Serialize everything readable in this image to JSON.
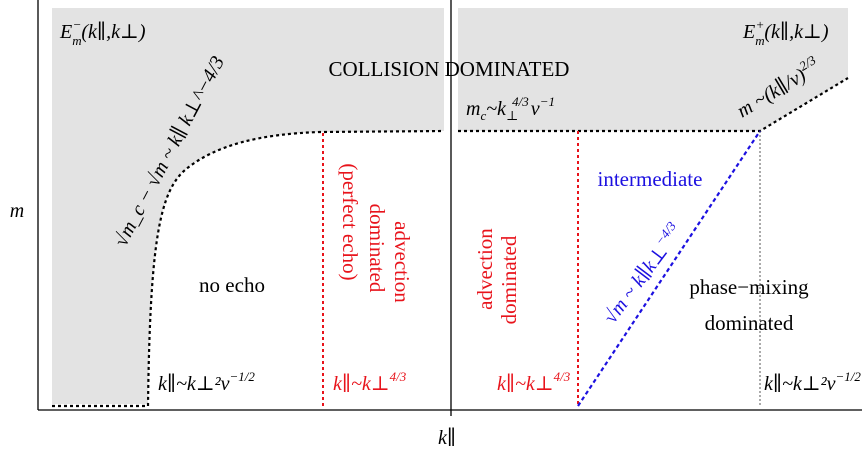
{
  "axes": {
    "x_label": "k∥",
    "y_label": "m"
  },
  "panels": {
    "left": {
      "energy_label_main": "E",
      "energy_label_sub": "m",
      "energy_label_sup": "−",
      "energy_label_args": "(k∥,k⊥)"
    },
    "right": {
      "energy_label_main": "E",
      "energy_label_sub": "m",
      "energy_label_sup": "+",
      "energy_label_args": "(k∥,k⊥)"
    }
  },
  "regions": {
    "collision": "COLLISION DOMINATED",
    "no_echo": "no echo",
    "left_advection_line1": "advection",
    "left_advection_line2": "dominated",
    "left_advection_line3": "(perfect echo)",
    "right_advection_line1": "advection",
    "right_advection_line2": "dominated",
    "intermediate": "intermediate",
    "phase_mixing_line1": "phase−mixing",
    "phase_mixing_line2": "dominated"
  },
  "formulas": {
    "left_curve": "√m_c − √m ~ k∥ k⊥^−4/3",
    "mc_prefix": "m",
    "mc_sub": "c",
    "mc_mid": "~k",
    "mc_sub2": "⊥",
    "mc_sup": "4/3",
    "mc_end": "ν",
    "mc_sup2": "−1",
    "m_right": "m ~(k∥/ν)",
    "m_right_sup": "2/3",
    "k_bottom_left": "k∥~k⊥²ν",
    "k_bottom_left_sup": "−1/2",
    "k_red_left": "k∥~k⊥",
    "k_red_left_sup": "4/3",
    "k_red_right": "k∥~k⊥",
    "k_red_right_sup": "4/3",
    "k_bottom_right": "k∥~k⊥²ν",
    "k_bottom_right_sup": "−1/2",
    "blue_line": "√m ~ k∥k⊥",
    "blue_line_sup": "−4/3"
  },
  "colors": {
    "shade": "#e3e3e3",
    "red": "#e8131b",
    "blue": "#1c10e0",
    "black": "#000000"
  }
}
